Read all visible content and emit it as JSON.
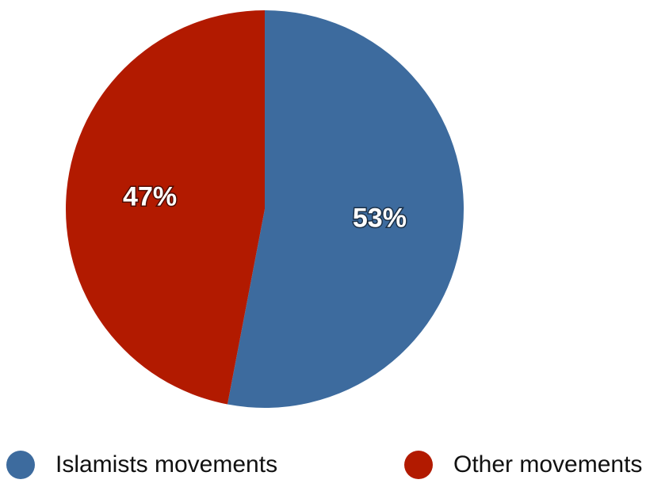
{
  "chart_data": {
    "type": "pie",
    "categories": [
      "Islamists movements",
      "Other movements"
    ],
    "values": [
      53,
      47
    ],
    "labels": [
      "53%",
      "47%"
    ],
    "colors": [
      "#3d6b9e",
      "#b21a00"
    ],
    "start": "12 o'clock",
    "direction": "clockwise",
    "legend": "bottom"
  }
}
